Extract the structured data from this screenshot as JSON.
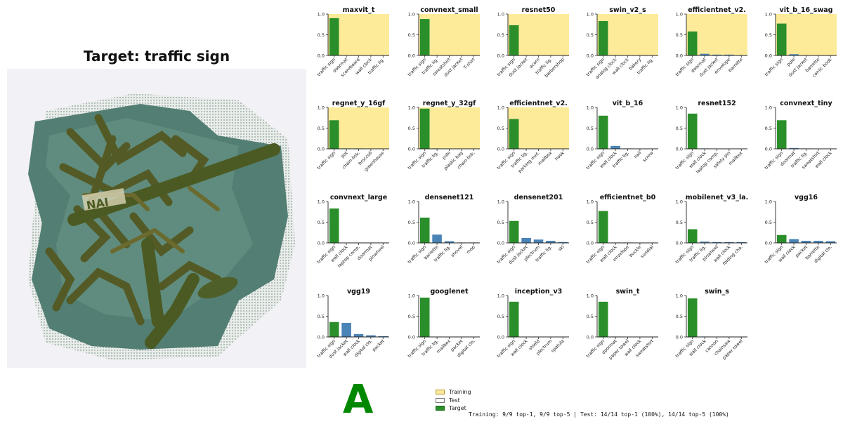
{
  "page": {
    "title": "Target: traffic sign",
    "grade": "A",
    "summary": "Training: 9/9 top-1, 9/9 top-5  |  Test: 14/14 top-1 (100%), 14/14 top-5 (100%)"
  },
  "legend": [
    {
      "label": "Training",
      "color": "#fbe89a",
      "border": "#b59a2a"
    },
    {
      "label": "Test",
      "color": "#ffffff",
      "border": "#777777"
    },
    {
      "label": "Target",
      "color": "#2a8f2a",
      "border": "#1d6b1d"
    }
  ],
  "colors": {
    "training_bg": "#fdeb9a",
    "target_bar": "#2a8f2a",
    "other_bar": "#4a83b5"
  },
  "chart_data": [
    {
      "type": "bar",
      "title": "maxvit_t",
      "set": "training",
      "ylim": [
        0,
        1
      ],
      "yticks": [
        "0.0",
        "0.5",
        "1.0"
      ],
      "categories": [
        "traffic sign",
        "doormat",
        "scoreboard",
        "wall clock",
        "traffic lig."
      ],
      "values": [
        0.9,
        0,
        0,
        0,
        0
      ]
    },
    {
      "type": "bar",
      "title": "convnext_small",
      "set": "training",
      "ylim": [
        0,
        1
      ],
      "yticks": [
        "0.0",
        "0.5",
        "1.0"
      ],
      "categories": [
        "traffic sign",
        "traffic lig.",
        "sweatshirt",
        "dust jacket",
        "T-shirt"
      ],
      "values": [
        0.88,
        0,
        0,
        0,
        0
      ]
    },
    {
      "type": "bar",
      "title": "resnet50",
      "set": "training",
      "ylim": [
        0,
        1
      ],
      "yticks": [
        "0.0",
        "0.5",
        "1.0"
      ],
      "categories": [
        "traffic sign",
        "dust jacket",
        "acorn",
        "traffic lig.",
        "barbershop"
      ],
      "values": [
        0.73,
        0,
        0,
        0,
        0
      ]
    },
    {
      "type": "bar",
      "title": "swin_v2_s",
      "set": "training",
      "ylim": [
        0,
        1
      ],
      "yticks": [
        "0.0",
        "0.5",
        "1.0"
      ],
      "categories": [
        "traffic sign",
        "analog clock",
        "wall clock",
        "bakery",
        "traffic lig."
      ],
      "values": [
        0.83,
        0.01,
        0,
        0,
        0
      ]
    },
    {
      "type": "bar",
      "title": "efficientnet_v2.",
      "set": "training",
      "ylim": [
        0,
        1
      ],
      "yticks": [
        "0.0",
        "0.5",
        "1.0"
      ],
      "categories": [
        "traffic sign",
        "doormat",
        "dust jacket",
        "envelope",
        "barrette"
      ],
      "values": [
        0.58,
        0.04,
        0.02,
        0.02,
        0.01
      ]
    },
    {
      "type": "bar",
      "title": "vit_b_16_swag",
      "set": "training",
      "ylim": [
        0,
        1
      ],
      "yticks": [
        "0.0",
        "0.5",
        "1.0"
      ],
      "categories": [
        "traffic sign",
        "pole",
        "dust jacket",
        "barrette",
        "comic book"
      ],
      "values": [
        0.77,
        0.03,
        0,
        0,
        0
      ]
    },
    {
      "type": "bar",
      "title": "regnet_y_16gf",
      "set": "training",
      "ylim": [
        0,
        1
      ],
      "yticks": [
        "0.0",
        "0.5",
        "1.0"
      ],
      "categories": [
        "traffic sign",
        "pot",
        "chain-link.",
        "broccoli",
        "greenhouse"
      ],
      "values": [
        0.69,
        0.01,
        0.01,
        0,
        0
      ]
    },
    {
      "type": "bar",
      "title": "regnet_y_32gf",
      "set": "training",
      "ylim": [
        0,
        1
      ],
      "yticks": [
        "0.0",
        "0.5",
        "1.0"
      ],
      "categories": [
        "traffic sign",
        "traffic lig.",
        "pole",
        "plastic bag",
        "chain-link."
      ],
      "values": [
        0.97,
        0.01,
        0,
        0,
        0
      ]
    },
    {
      "type": "bar",
      "title": "efficientnet_v2.",
      "set": "training",
      "ylim": [
        0,
        1
      ],
      "yticks": [
        "0.0",
        "0.5",
        "1.0"
      ],
      "categories": [
        "traffic sign",
        "traffic lig.",
        "parking met.",
        "mailbox",
        "hook"
      ],
      "values": [
        0.72,
        0,
        0,
        0,
        0
      ]
    },
    {
      "type": "bar",
      "title": "vit_b_16",
      "set": "test",
      "ylim": [
        0,
        1
      ],
      "yticks": [
        "0.0",
        "0.5",
        "1.0"
      ],
      "categories": [
        "traffic sign",
        "wall clock",
        "traffic lig.",
        "nail",
        "screw"
      ],
      "values": [
        0.8,
        0.07,
        0.01,
        0,
        0
      ]
    },
    {
      "type": "bar",
      "title": "resnet152",
      "set": "test",
      "ylim": [
        0,
        1
      ],
      "yticks": [
        "0.0",
        "0.5",
        "1.0"
      ],
      "categories": [
        "traffic sign",
        "wall clock",
        "laptop comp.",
        "safety pin",
        "mailbox"
      ],
      "values": [
        0.85,
        0.01,
        0,
        0,
        0
      ]
    },
    {
      "type": "bar",
      "title": "convnext_tiny",
      "set": "test",
      "ylim": [
        0,
        1
      ],
      "yticks": [
        "0.0",
        "0.5",
        "1.0"
      ],
      "categories": [
        "traffic sign",
        "doormat",
        "traffic lig.",
        "sweatshirt",
        "wall clock"
      ],
      "values": [
        0.69,
        0.02,
        0.01,
        0,
        0
      ]
    },
    {
      "type": "bar",
      "title": "convnext_large",
      "set": "test",
      "ylim": [
        0,
        1
      ],
      "yticks": [
        "0.0",
        "0.5",
        "1.0"
      ],
      "categories": [
        "traffic sign",
        "wall clock",
        "laptop comp.",
        "doormat",
        "pinwheel"
      ],
      "values": [
        0.83,
        0,
        0,
        0,
        0
      ]
    },
    {
      "type": "bar",
      "title": "densenet121",
      "set": "test",
      "ylim": [
        0,
        1
      ],
      "yticks": [
        "0.0",
        "0.5",
        "1.0"
      ],
      "categories": [
        "traffic sign",
        "barrette",
        "traffic lig.",
        "shovel",
        "mop"
      ],
      "values": [
        0.61,
        0.2,
        0.04,
        0.01,
        0.01
      ]
    },
    {
      "type": "bar",
      "title": "densenet201",
      "set": "test",
      "ylim": [
        0,
        1
      ],
      "yticks": [
        "0.0",
        "0.5",
        "1.0"
      ],
      "categories": [
        "traffic sign",
        "dust jacket",
        "plectrum",
        "traffic lig.",
        "ski"
      ],
      "values": [
        0.53,
        0.12,
        0.08,
        0.05,
        0.02
      ]
    },
    {
      "type": "bar",
      "title": "efficientnet_b0",
      "set": "test",
      "ylim": [
        0,
        1
      ],
      "yticks": [
        "0.0",
        "0.5",
        "1.0"
      ],
      "categories": [
        "traffic sign",
        "wall clock",
        "envelope",
        "buckle",
        "sundial"
      ],
      "values": [
        0.77,
        0.01,
        0.01,
        0,
        0
      ]
    },
    {
      "type": "bar",
      "title": "mobilenet_v3_la.",
      "set": "test",
      "ylim": [
        0,
        1
      ],
      "yticks": [
        "0.0",
        "0.5",
        "1.0"
      ],
      "categories": [
        "traffic sign",
        "traffic lig.",
        "pinwheel",
        "wall clock",
        "folding cha."
      ],
      "values": [
        0.33,
        0.03,
        0.02,
        0.02,
        0.02
      ]
    },
    {
      "type": "bar",
      "title": "vgg16",
      "set": "test",
      "ylim": [
        0,
        1
      ],
      "yticks": [
        "0.0",
        "0.5",
        "1.0"
      ],
      "categories": [
        "traffic sign",
        "wall clock",
        "packet",
        "barrette",
        "digital clo."
      ],
      "values": [
        0.19,
        0.09,
        0.05,
        0.05,
        0.04
      ]
    },
    {
      "type": "bar",
      "title": "vgg19",
      "set": "test",
      "ylim": [
        0,
        1
      ],
      "yticks": [
        "0.0",
        "0.5",
        "1.0"
      ],
      "categories": [
        "traffic sign",
        "dust jacket",
        "wall clock",
        "digital clo.",
        "packet"
      ],
      "values": [
        0.36,
        0.34,
        0.07,
        0.04,
        0.02
      ]
    },
    {
      "type": "bar",
      "title": "googlenet",
      "set": "test",
      "ylim": [
        0,
        1
      ],
      "yticks": [
        "0.0",
        "0.5",
        "1.0"
      ],
      "categories": [
        "traffic sign",
        "traffic lig.",
        "mailbox",
        "packet",
        "digital clo."
      ],
      "values": [
        0.95,
        0,
        0,
        0,
        0
      ]
    },
    {
      "type": "bar",
      "title": "inception_v3",
      "set": "test",
      "ylim": [
        0,
        1
      ],
      "yticks": [
        "0.0",
        "0.5",
        "1.0"
      ],
      "categories": [
        "traffic sign",
        "wall clock",
        "shield",
        "plectrum",
        "spatula"
      ],
      "values": [
        0.85,
        0,
        0,
        0,
        0
      ]
    },
    {
      "type": "bar",
      "title": "swin_t",
      "set": "test",
      "ylim": [
        0,
        1
      ],
      "yticks": [
        "0.0",
        "0.5",
        "1.0"
      ],
      "categories": [
        "traffic sign",
        "doormat",
        "paper towel",
        "wall clock",
        "sweatshirt"
      ],
      "values": [
        0.85,
        0.01,
        0,
        0,
        0
      ]
    },
    {
      "type": "bar",
      "title": "swin_s",
      "set": "test",
      "ylim": [
        0,
        1
      ],
      "yticks": [
        "0.0",
        "0.5",
        "1.0"
      ],
      "categories": [
        "traffic sign",
        "wall clock",
        "cannon",
        "chainsaw",
        "paper towel"
      ],
      "values": [
        0.93,
        0.01,
        0,
        0,
        0
      ]
    }
  ]
}
